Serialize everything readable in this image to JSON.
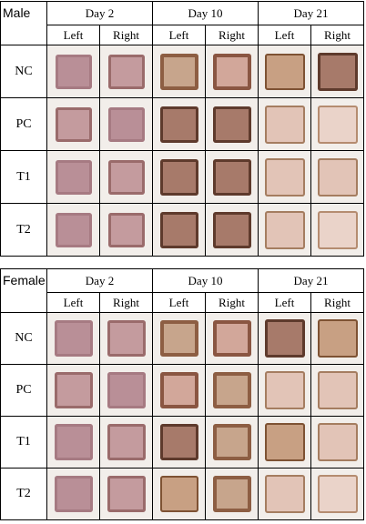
{
  "top": {
    "sex": "Male",
    "days": [
      "Day 2",
      "Day 10",
      "Day 21"
    ],
    "sides": [
      "Left",
      "Right",
      "Left",
      "Right",
      "Left",
      "Right"
    ],
    "rows": [
      "NC",
      "PC",
      "T1",
      "T2"
    ]
  },
  "bottom": {
    "sex": "Female",
    "days": [
      "Day 2",
      "Day 10",
      "Day 21"
    ],
    "sides": [
      "Left",
      "Right",
      "Left",
      "Right",
      "Left",
      "Right"
    ],
    "rows": [
      "NC",
      "PC",
      "T1",
      "T2"
    ]
  }
}
